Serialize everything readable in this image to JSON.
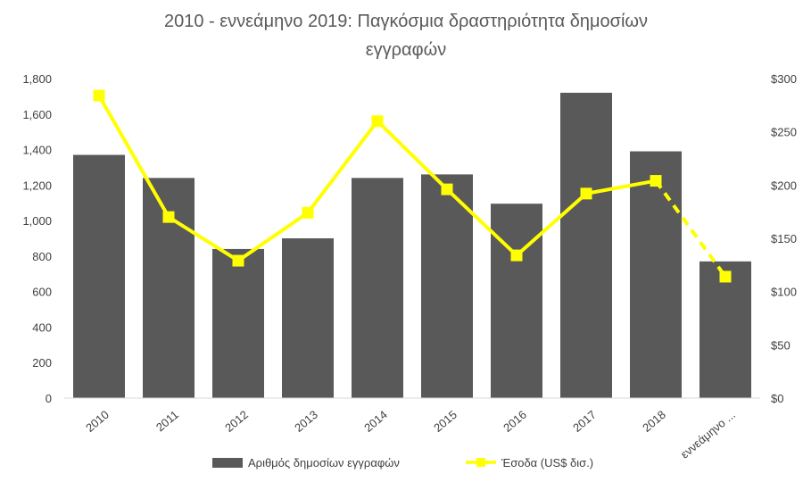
{
  "chart_data": {
    "type": "bar",
    "title_lines": [
      "2010 - εννεάμηνο  2019: Παγκόσμια δραστηριότητα δημοσίων",
      "εγγραφών"
    ],
    "categories": [
      "2010",
      "2011",
      "2012",
      "2013",
      "2014",
      "2015",
      "2016",
      "2017",
      "2018",
      "εννεάμηνο ..."
    ],
    "series": [
      {
        "name": "Αριθμός δημοσίων εγγραφών",
        "type": "bar",
        "axis": "left",
        "color": "#595959",
        "values": [
          1370,
          1240,
          840,
          900,
          1240,
          1260,
          1095,
          1720,
          1390,
          770
        ]
      },
      {
        "name": "Έσοδα (US$ δισ.)",
        "type": "line",
        "axis": "right",
        "color": "#ffff00",
        "values": [
          284,
          170,
          129,
          174,
          260,
          196,
          134,
          192,
          204,
          114
        ],
        "dashed_last_segment": true
      }
    ],
    "y_left": {
      "range": [
        0,
        1800
      ],
      "ticks": [
        "0",
        "200",
        "400",
        "600",
        "800",
        "1,000",
        "1,200",
        "1,400",
        "1,600",
        "1,800"
      ]
    },
    "y_right": {
      "range": [
        0,
        300
      ],
      "ticks": [
        "$0",
        "$50",
        "$100",
        "$150",
        "$200",
        "$250",
        "$300"
      ]
    },
    "grid": false,
    "legend_position": "bottom"
  }
}
